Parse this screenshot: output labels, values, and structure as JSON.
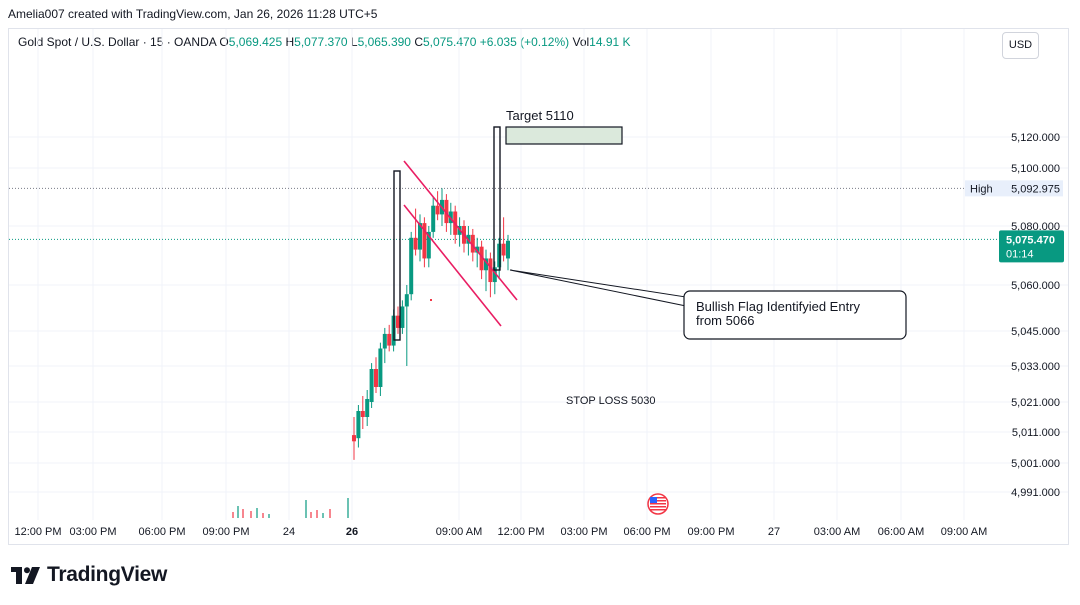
{
  "header": {
    "created_by": "Amelia007 created with TradingView.com, Jan 26, 2026 11:28 UTC+5"
  },
  "legend": {
    "symbol": "Gold Spot / U.S. Dollar · 15 · OANDA",
    "open_label": "O",
    "open": "5,069.425",
    "high_label": "H",
    "high": "5,077.370",
    "low_label": "L",
    "low": "5,065.390",
    "close_label": "C",
    "close": "5,075.470",
    "change": "+6.035 (+0.12%)",
    "vol_label": "Vol",
    "vol": "14.91 K"
  },
  "currency_button": "USD",
  "colors": {
    "up": "#089981",
    "down": "#f23645",
    "flag_lines": "#e91e63",
    "target_box_fill": "#dbe9dc",
    "high_line": "#787b86",
    "price_line": "#089981"
  },
  "annotations": {
    "target": "Target 5110",
    "callout": "Bullish Flag Identifyied Entry\nfrom 5066",
    "callout_line1": "Bullish Flag Identifyied Entry",
    "callout_line2": "from 5066",
    "stop_loss": "STOP LOSS 5030"
  },
  "labels": {
    "high_tag_label": "High",
    "high_tag_value": "5,092.975",
    "last_price": "5,075.470",
    "countdown": "01:14"
  },
  "brand": "TradingView",
  "chart_data": {
    "type": "candlestick",
    "y_ticks": [
      5120,
      5100,
      5080,
      5060,
      5045,
      5033,
      5021,
      5011,
      5001,
      4991
    ],
    "y_tick_labels": [
      "5,120.000",
      "5,100.000",
      "5,080.000",
      "5,060.000",
      "5,045.000",
      "5,033.000",
      "5,021.000",
      "5,011.000",
      "5,001.000",
      "4,991.000"
    ],
    "x_tick_labels": [
      "12:00 PM",
      "03:00 PM",
      "06:00 PM",
      "09:00 PM",
      "24",
      "26",
      "09:00 AM",
      "12:00 PM",
      "03:00 PM",
      "06:00 PM",
      "09:00 PM",
      "27",
      "03:00 AM",
      "06:00 AM",
      "09:00 AM"
    ],
    "high_line": 5092.975,
    "last_price": 5075.47,
    "target": 5110,
    "entry": 5066,
    "stop_loss": 5030,
    "candles": [
      {
        "o": 5010,
        "h": 5016,
        "l": 5002,
        "c": 5008
      },
      {
        "o": 5009,
        "h": 5020,
        "l": 5006,
        "c": 5018
      },
      {
        "o": 5018,
        "h": 5023,
        "l": 5012,
        "c": 5016
      },
      {
        "o": 5016,
        "h": 5025,
        "l": 5013,
        "c": 5022
      },
      {
        "o": 5021,
        "h": 5034,
        "l": 5019,
        "c": 5032
      },
      {
        "o": 5032,
        "h": 5036,
        "l": 5024,
        "c": 5026
      },
      {
        "o": 5026,
        "h": 5041,
        "l": 5023,
        "c": 5039
      },
      {
        "o": 5039,
        "h": 5046,
        "l": 5034,
        "c": 5044
      },
      {
        "o": 5044,
        "h": 5047,
        "l": 5038,
        "c": 5040
      },
      {
        "o": 5040,
        "h": 5052,
        "l": 5038,
        "c": 5050
      },
      {
        "o": 5050,
        "h": 5053,
        "l": 5044,
        "c": 5046
      },
      {
        "o": 5046,
        "h": 5055,
        "l": 5044,
        "c": 5053
      },
      {
        "o": 5053,
        "h": 5060,
        "l": 5033,
        "c": 5057
      },
      {
        "o": 5057,
        "h": 5078,
        "l": 5055,
        "c": 5076
      },
      {
        "o": 5076,
        "h": 5086,
        "l": 5070,
        "c": 5072
      },
      {
        "o": 5072,
        "h": 5084,
        "l": 5068,
        "c": 5081
      },
      {
        "o": 5081,
        "h": 5083,
        "l": 5066,
        "c": 5069
      },
      {
        "o": 5069,
        "h": 5080,
        "l": 5066,
        "c": 5078
      },
      {
        "o": 5078,
        "h": 5090,
        "l": 5076,
        "c": 5087
      },
      {
        "o": 5087,
        "h": 5092,
        "l": 5082,
        "c": 5084
      },
      {
        "o": 5084,
        "h": 5093,
        "l": 5080,
        "c": 5089
      },
      {
        "o": 5089,
        "h": 5091,
        "l": 5078,
        "c": 5081
      },
      {
        "o": 5081,
        "h": 5088,
        "l": 5077,
        "c": 5085
      },
      {
        "o": 5085,
        "h": 5087,
        "l": 5074,
        "c": 5077
      },
      {
        "o": 5077,
        "h": 5083,
        "l": 5073,
        "c": 5080
      },
      {
        "o": 5080,
        "h": 5082,
        "l": 5071,
        "c": 5074
      },
      {
        "o": 5074,
        "h": 5080,
        "l": 5070,
        "c": 5077
      },
      {
        "o": 5077,
        "h": 5079,
        "l": 5068,
        "c": 5071
      },
      {
        "o": 5071,
        "h": 5076,
        "l": 5066,
        "c": 5073
      },
      {
        "o": 5073,
        "h": 5075,
        "l": 5062,
        "c": 5065
      },
      {
        "o": 5065,
        "h": 5072,
        "l": 5058,
        "c": 5069
      },
      {
        "o": 5069,
        "h": 5071,
        "l": 5056,
        "c": 5061
      },
      {
        "o": 5061,
        "h": 5068,
        "l": 5057,
        "c": 5066
      },
      {
        "o": 5066,
        "h": 5076,
        "l": 5062,
        "c": 5074
      },
      {
        "o": 5074,
        "h": 5083,
        "l": 5068,
        "c": 5070
      },
      {
        "o": 5069,
        "h": 5077,
        "l": 5065,
        "c": 5075
      }
    ]
  }
}
